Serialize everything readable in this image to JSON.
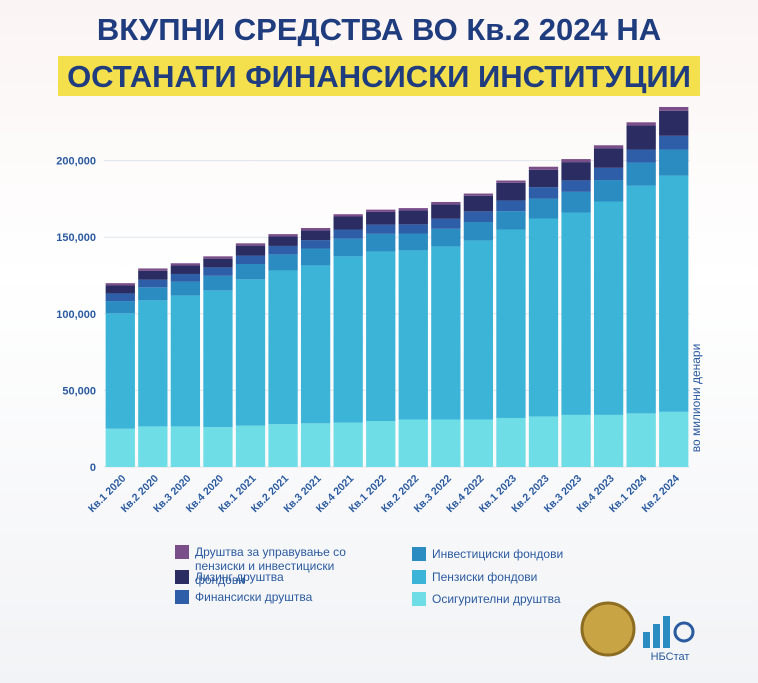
{
  "chart_data": {
    "type": "stacked_bar",
    "title": "ВКУПНИ СРЕДСТВА ВО Кв.2 2024 НА",
    "subtitle": "ОСТАНАТИ ФИНАНСИСКИ ИНСТИТУЦИИ",
    "y_label": "во милиони денари",
    "categories": [
      "Кв.1 2020",
      "Кв.2 2020",
      "Кв.3 2020",
      "Кв.4 2020",
      "Кв.1 2021",
      "Кв.2 2021",
      "Кв.3 2021",
      "Кв.4 2021",
      "Кв.1 2022",
      "Кв.2 2022",
      "Кв.3 2022",
      "Кв.4 2022",
      "Кв.1 2023",
      "Кв.2 2023",
      "Кв.3 2023",
      "Кв.4 2023",
      "Кв.1 2024",
      "Кв.2 2024"
    ],
    "series": [
      {
        "name": "Осигурителни друштва",
        "color": "#6fdde6",
        "values": [
          25000,
          26500,
          26500,
          26000,
          27000,
          28000,
          28500,
          29000,
          30000,
          31000,
          31000,
          31000,
          32000,
          33000,
          34000,
          34000,
          35000,
          36000
        ]
      },
      {
        "name": "Пензиски фондови",
        "color": "#3cb4d8",
        "values": [
          75300,
          82300,
          85500,
          89300,
          95500,
          100300,
          103100,
          108500,
          110700,
          110400,
          113000,
          116900,
          123000,
          129200,
          132100,
          139300,
          148700,
          154200
        ]
      },
      {
        "name": "Инвестициски фондови",
        "color": "#2a8cc0",
        "values": [
          8000,
          8500,
          9000,
          9500,
          10000,
          10500,
          11000,
          11500,
          11500,
          11000,
          11500,
          12000,
          12000,
          13000,
          13500,
          14000,
          15000,
          17000
        ]
      },
      {
        "name": "Финансиски друштва",
        "color": "#2e5ea8",
        "values": [
          5000,
          5000,
          5000,
          5500,
          5500,
          5500,
          5500,
          6000,
          6000,
          6000,
          6500,
          7000,
          7000,
          7500,
          7500,
          8000,
          8500,
          9000
        ]
      },
      {
        "name": "Лизинг друштва",
        "color": "#2a2c62",
        "values": [
          5200,
          5800,
          5500,
          5700,
          6500,
          6200,
          6400,
          8500,
          8300,
          9100,
          9500,
          10100,
          11500,
          11300,
          11900,
          12700,
          15800,
          16300
        ]
      },
      {
        "name": "Друштва за управување со пензиски и инвестициски фондови",
        "color": "#7a4e89",
        "values": [
          1500,
          1500,
          1500,
          1500,
          1500,
          1500,
          1500,
          1500,
          1500,
          1500,
          1500,
          1500,
          1500,
          2000,
          2000,
          2000,
          2000,
          2500
        ]
      }
    ],
    "ylim": [
      0,
      250000
    ],
    "yticks": [
      0,
      {
        "value": 50000,
        "label": "50,000"
      },
      {
        "value": 100000,
        "label": "100,000"
      },
      {
        "value": 150000,
        "label": "150,000"
      },
      {
        "value": 200000,
        "label": "200,000"
      }
    ],
    "grid": true
  },
  "logo_text": "НБСтат"
}
